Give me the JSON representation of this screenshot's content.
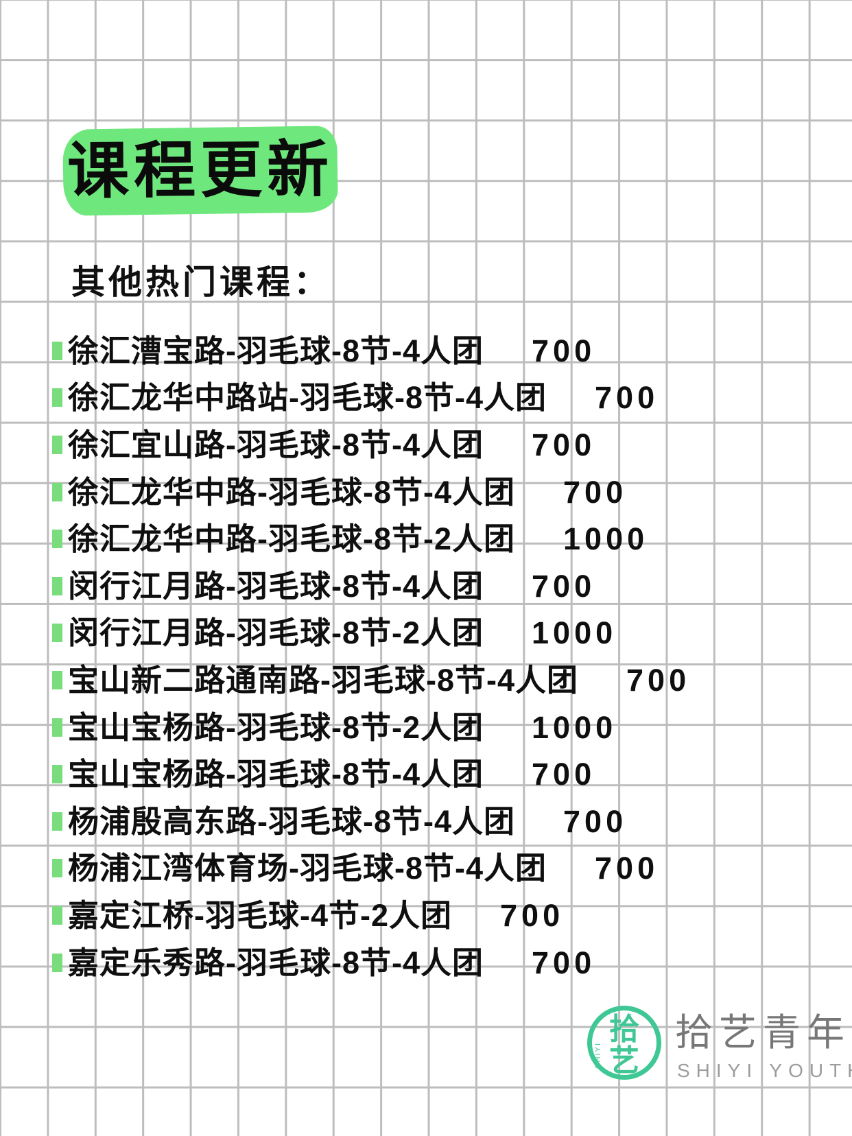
{
  "header": {
    "title": "课程更新",
    "subtitle": "其他热门课程："
  },
  "courses": [
    {
      "name": "徐汇漕宝路-羽毛球-8节-4人团",
      "price": "700"
    },
    {
      "name": "徐汇龙华中路站-羽毛球-8节-4人团",
      "price": "700"
    },
    {
      "name": "徐汇宜山路-羽毛球-8节-4人团",
      "price": "700"
    },
    {
      "name": "徐汇龙华中路-羽毛球-8节-4人团",
      "price": "700"
    },
    {
      "name": "徐汇龙华中路-羽毛球-8节-2人团",
      "price": "1000"
    },
    {
      "name": "闵行江月路-羽毛球-8节-4人团",
      "price": "700"
    },
    {
      "name": "闵行江月路-羽毛球-8节-2人团",
      "price": "1000"
    },
    {
      "name": "宝山新二路通南路-羽毛球-8节-4人团",
      "price": "700"
    },
    {
      "name": "宝山宝杨路-羽毛球-8节-2人团",
      "price": "1000"
    },
    {
      "name": "宝山宝杨路-羽毛球-8节-4人团",
      "price": "700"
    },
    {
      "name": "杨浦殷高东路-羽毛球-8节-4人团",
      "price": "700"
    },
    {
      "name": "杨浦江湾体育场-羽毛球-8节-4人团",
      "price": "700"
    },
    {
      "name": "嘉定江桥-羽毛球-4节-2人团",
      "price": "700"
    },
    {
      "name": "嘉定乐秀路-羽毛球-8节-4人团",
      "price": "700"
    }
  ],
  "logo": {
    "seal_char_top": "拾",
    "seal_char_bottom": "艺",
    "seal_side_text": "SHIYI",
    "name_cn": "拾艺青年",
    "name_en": "SHIYI YOUTH"
  },
  "colors": {
    "highlight_green": "#6ee87d",
    "bullet_green": "#79dd7e",
    "logo_green": "#3fc795",
    "logo_gray": "#777777",
    "logo_light_gray": "#9c9c9c",
    "grid_line": "#bdbdbd",
    "text_black": "#0f0f0f"
  }
}
